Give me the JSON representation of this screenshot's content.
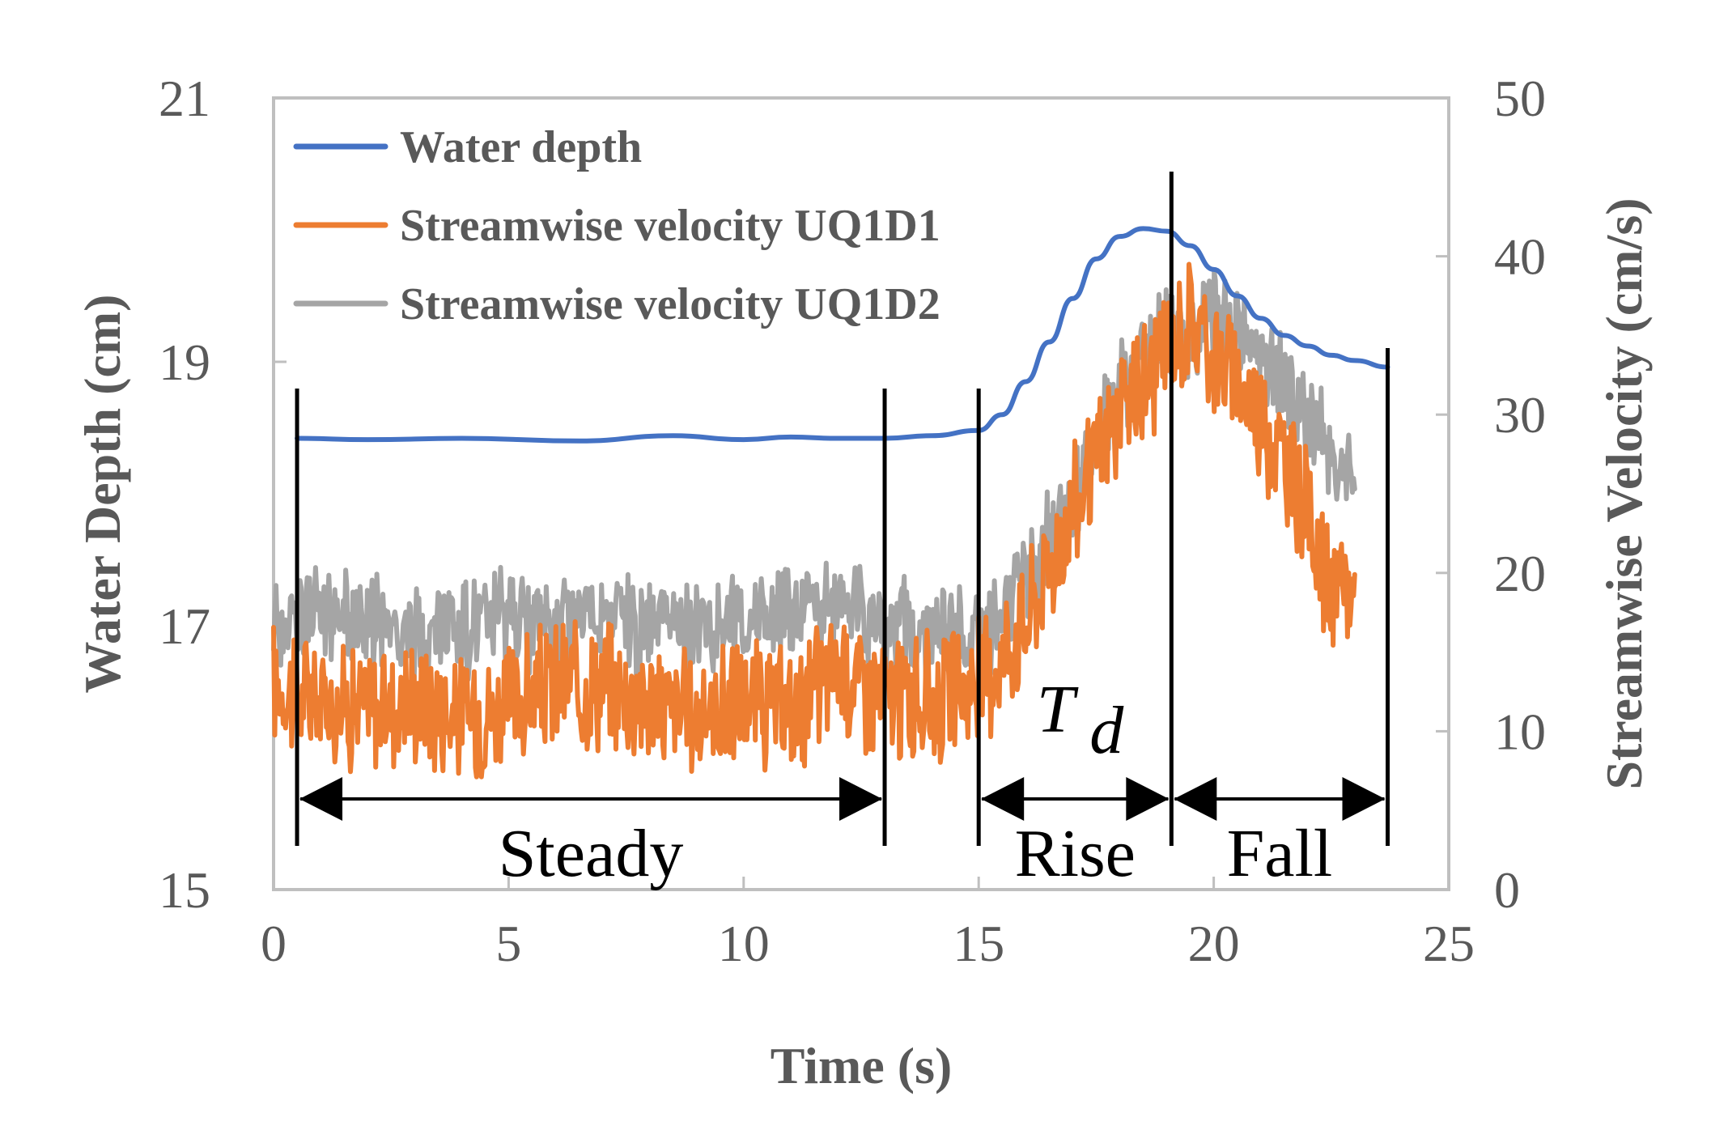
{
  "chart_data": {
    "type": "line",
    "title": "",
    "xlabel": "Time (s)",
    "ylabel": "Water Depth (cm)",
    "y2label": "Streamwise Velocity (cm/s)",
    "xlim": [
      0,
      25
    ],
    "ylim": [
      15,
      21
    ],
    "y2lim": [
      0,
      50
    ],
    "xticks": [
      "0",
      "5",
      "10",
      "15",
      "20",
      "25"
    ],
    "yticks": [
      "15",
      "17",
      "19",
      "21"
    ],
    "y2ticks": [
      "0",
      "10",
      "20",
      "30",
      "40",
      "50"
    ],
    "grid": false,
    "legend_position": "top-left",
    "series": [
      {
        "name": "Water depth",
        "axis": "left",
        "color": "#4472C4",
        "x": [
          0.5,
          2,
          4,
          6.5,
          8.5,
          10,
          11,
          12,
          13,
          14,
          15,
          15.5,
          16,
          16.5,
          17,
          17.5,
          18,
          18.5,
          19,
          19.5,
          20,
          20.5,
          21,
          21.5,
          22,
          22.5,
          23,
          23.7
        ],
        "y": [
          18.42,
          18.41,
          18.42,
          18.4,
          18.44,
          18.41,
          18.43,
          18.42,
          18.42,
          18.44,
          18.48,
          18.6,
          18.85,
          19.15,
          19.48,
          19.78,
          19.95,
          20.01,
          19.99,
          19.88,
          19.7,
          19.5,
          19.33,
          19.2,
          19.12,
          19.05,
          19.01,
          18.96
        ]
      },
      {
        "name": "Streamwise velocity UQ1D1",
        "axis": "right",
        "color": "#ED7D31",
        "x": [
          0,
          1,
          2,
          3,
          4,
          5,
          6,
          7,
          8,
          9,
          10,
          11,
          12,
          13,
          14,
          15,
          16,
          17,
          18,
          19,
          19.5,
          20,
          21,
          22,
          22.5,
          23
        ],
        "y": [
          13,
          12,
          11.5,
          12,
          11,
          11.5,
          13,
          13,
          12,
          11,
          12,
          11,
          14,
          12,
          12,
          13,
          17,
          24,
          30,
          34,
          36,
          34,
          30,
          24,
          18,
          19
        ]
      },
      {
        "name": "Streamwise velocity UQ1D2",
        "axis": "right",
        "color": "#A5A5A5",
        "x": [
          0,
          1,
          2,
          3,
          4,
          5,
          6,
          7,
          8,
          9,
          10,
          11,
          12,
          13,
          14,
          15,
          16,
          17,
          18,
          19,
          20,
          21,
          22,
          22.5,
          23
        ],
        "y": [
          17,
          17.5,
          17,
          16,
          16.5,
          17,
          17,
          17.5,
          16.5,
          17,
          17,
          17.5,
          18,
          17,
          16,
          16,
          19,
          25,
          32,
          35,
          36,
          34,
          30,
          28,
          25
        ]
      }
    ],
    "phases": [
      {
        "label": "Steady",
        "start": 0.5,
        "end": 13
      },
      {
        "label": "Rise",
        "start": 15,
        "end": 19.1,
        "annotation_main": "T",
        "annotation_sub": "d"
      },
      {
        "label": "Fall",
        "start": 19.1,
        "end": 23.7
      }
    ]
  }
}
